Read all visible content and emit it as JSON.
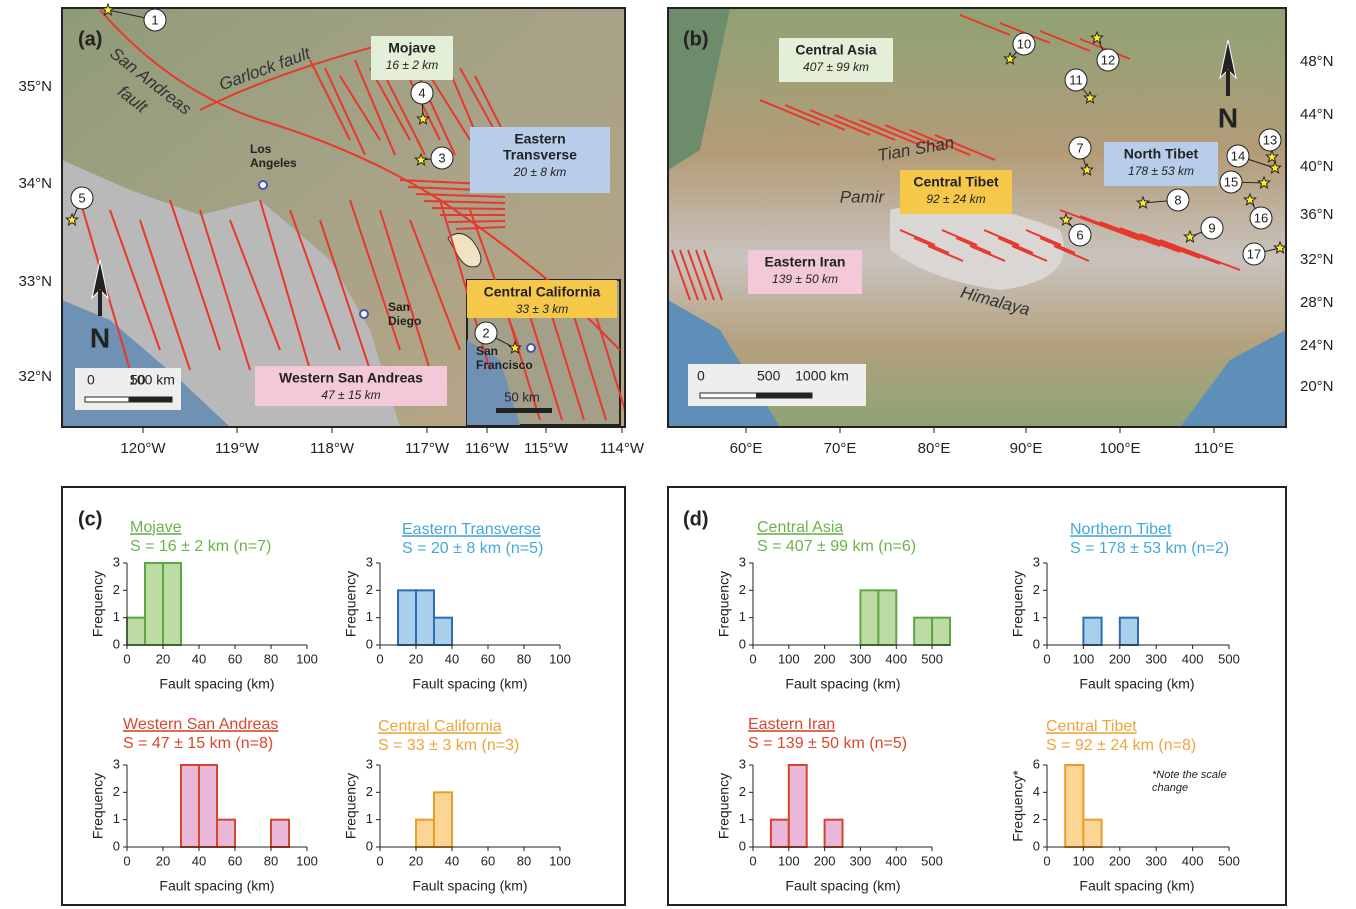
{
  "maps": [
    {
      "label": "(a)",
      "regions": [
        {
          "name": [
            "Mojave"
          ],
          "spacing": "16 ± 2 km"
        },
        {
          "name": [
            "Eastern",
            "Transverse"
          ],
          "spacing": "20 ± 8 km"
        },
        {
          "name": [
            "Western San Andreas"
          ],
          "spacing": "47 ± 15 km"
        },
        {
          "name": [
            "Central California"
          ],
          "spacing": "33 ± 3 km"
        }
      ],
      "places": [
        {
          "name": [
            "Los",
            "Angeles"
          ]
        },
        {
          "name": [
            "San",
            "Diego"
          ]
        },
        {
          "name": [
            "San",
            "Francisco"
          ]
        }
      ],
      "features": [
        [
          "San Andreas",
          "fault"
        ],
        [
          "Garlock fault"
        ]
      ],
      "sites": [
        "1",
        "2",
        "3",
        "4",
        "5"
      ],
      "scale_bar": [
        "0",
        "50",
        "100 km"
      ],
      "inset_scale_bar": "50 km",
      "north": "N",
      "x_ticks": [
        "120°W",
        "119°W",
        "118°W",
        "117°W",
        "116°W",
        "115°W",
        "114°W"
      ],
      "y_ticks": [
        "35°N",
        "34°N",
        "33°N",
        "32°N"
      ]
    },
    {
      "label": "(b)",
      "regions": [
        {
          "name": [
            "Central Asia"
          ],
          "spacing": "407 ± 99 km"
        },
        {
          "name": [
            "North Tibet"
          ],
          "spacing": "178 ± 53 km"
        },
        {
          "name": [
            "Central Tibet"
          ],
          "spacing": "92 ± 24 km"
        },
        {
          "name": [
            "Eastern Iran"
          ],
          "spacing": "139 ± 50 km"
        }
      ],
      "places": [],
      "features": [
        [
          "Tian Shan"
        ],
        [
          "Pamir"
        ],
        [
          "Himalaya"
        ]
      ],
      "sites": [
        "6",
        "7",
        "8",
        "9",
        "10",
        "11",
        "12",
        "13",
        "14",
        "15",
        "16",
        "17"
      ],
      "scale_bar": [
        "0",
        "500",
        "1000 km"
      ],
      "north": "N",
      "x_ticks": [
        "60°E",
        "70°E",
        "80°E",
        "90°E",
        "100°E",
        "110°E"
      ],
      "y_ticks": [
        "48°N",
        "44°N",
        "40°N",
        "36°N",
        "32°N",
        "28°N",
        "24°N",
        "20°N"
      ]
    }
  ],
  "panel_labels": [
    "(c)",
    "(d)"
  ],
  "chart_data": [
    {
      "type": "histogram",
      "title": "Mojave",
      "subtitle": "S = 16 ± 2 km (n=7)",
      "bins": [
        0,
        10,
        20,
        30
      ],
      "values": [
        1,
        3,
        3
      ],
      "color": "#bcdca4",
      "edge_color": "#5ca845",
      "title_color": "#6cb24c",
      "x_label": "Fault spacing (km)",
      "y_label": "Frequency",
      "xlim": [
        0,
        100
      ],
      "ylim": [
        0,
        3
      ],
      "xticks": [
        0,
        20,
        40,
        60,
        80,
        100
      ],
      "yticks": [
        0,
        1,
        2,
        3
      ]
    },
    {
      "type": "histogram",
      "title": "Eastern Transverse",
      "subtitle": "S = 20 ± 8 km (n=5)",
      "bins": [
        10,
        20,
        30,
        40
      ],
      "values": [
        2,
        2,
        1
      ],
      "color": "#a9cfea",
      "edge_color": "#2f6db3",
      "title_color": "#45a8dc",
      "x_label": "Fault spacing (km)",
      "y_label": "Frequency",
      "xlim": [
        0,
        100
      ],
      "ylim": [
        0,
        3
      ],
      "xticks": [
        0,
        20,
        40,
        60,
        80,
        100
      ],
      "yticks": [
        0,
        1,
        2,
        3
      ]
    },
    {
      "type": "histogram",
      "title": "Western San Andreas",
      "subtitle": "S = 47 ± 15 km (n=8)",
      "bins": [
        30,
        40,
        50,
        60,
        70,
        80,
        90
      ],
      "values": [
        3,
        3,
        1,
        0,
        0,
        1
      ],
      "color": "#e9b8d8",
      "edge_color": "#d4452c",
      "title_color": "#d9462b",
      "x_label": "Fault spacing (km)",
      "y_label": "Frequency",
      "xlim": [
        0,
        100
      ],
      "ylim": [
        0,
        3
      ],
      "xticks": [
        0,
        20,
        40,
        60,
        80,
        100
      ],
      "yticks": [
        0,
        1,
        2,
        3
      ]
    },
    {
      "type": "histogram",
      "title": "Central California",
      "subtitle": "S = 33 ± 3 km (n=3)",
      "bins": [
        20,
        30,
        40
      ],
      "values": [
        1,
        2
      ],
      "color": "#fbd594",
      "edge_color": "#e99e2c",
      "title_color": "#eea53a",
      "x_label": "Fault spacing (km)",
      "y_label": "Frequency",
      "xlim": [
        0,
        100
      ],
      "ylim": [
        0,
        3
      ],
      "xticks": [
        0,
        20,
        40,
        60,
        80,
        100
      ],
      "yticks": [
        0,
        1,
        2,
        3
      ]
    },
    {
      "type": "histogram",
      "title": "Central Asia",
      "subtitle": "S = 407 ± 99 km (n=6)",
      "bins": [
        300,
        350,
        400,
        450,
        500,
        550
      ],
      "values": [
        2,
        2,
        0,
        1,
        1
      ],
      "color": "#bcdca4",
      "edge_color": "#5ca845",
      "title_color": "#6cb24c",
      "x_label": "Fault spacing (km)",
      "y_label": "Frequency",
      "xlim": [
        0,
        550
      ],
      "ylim": [
        0,
        3
      ],
      "xticks": [
        0,
        100,
        200,
        300,
        400,
        500
      ],
      "yticks": [
        0,
        1,
        2,
        3
      ]
    },
    {
      "type": "histogram",
      "title": "Northern Tibet",
      "subtitle": "S = 178 ± 53 km (n=2)",
      "bins": [
        100,
        150,
        200,
        250
      ],
      "values": [
        1,
        0,
        1
      ],
      "color": "#a9cfea",
      "edge_color": "#2f6db3",
      "title_color": "#45a8dc",
      "x_label": "Fault spacing (km)",
      "y_label": "Frequency",
      "xlim": [
        0,
        500
      ],
      "ylim": [
        0,
        3
      ],
      "xticks": [
        0,
        100,
        200,
        300,
        400,
        500
      ],
      "yticks": [
        0,
        1,
        2,
        3
      ]
    },
    {
      "type": "histogram",
      "title": "Eastern Iran",
      "subtitle": "S = 139 ± 50 km (n=5)",
      "bins": [
        50,
        100,
        150,
        200,
        250
      ],
      "values": [
        1,
        3,
        0,
        1
      ],
      "color": "#e9b8d8",
      "edge_color": "#d4452c",
      "title_color": "#d9462b",
      "x_label": "Fault spacing (km)",
      "y_label": "Frequency",
      "xlim": [
        0,
        500
      ],
      "ylim": [
        0,
        3
      ],
      "xticks": [
        0,
        100,
        200,
        300,
        400,
        500
      ],
      "yticks": [
        0,
        1,
        2,
        3
      ]
    },
    {
      "type": "histogram",
      "title": "Central Tibet",
      "subtitle": "S = 92 ± 24 km (n=8)",
      "bins": [
        50,
        100,
        150
      ],
      "values": [
        6,
        2
      ],
      "color": "#fbd594",
      "edge_color": "#e99e2c",
      "title_color": "#eea53a",
      "x_label": "Fault spacing (km)",
      "y_label": "Frequency*",
      "annotation": [
        "*Note the scale",
        "change"
      ],
      "xlim": [
        0,
        500
      ],
      "ylim": [
        0,
        6
      ],
      "xticks": [
        0,
        100,
        200,
        300,
        400,
        500
      ],
      "yticks": [
        0,
        2,
        4,
        6
      ]
    }
  ]
}
